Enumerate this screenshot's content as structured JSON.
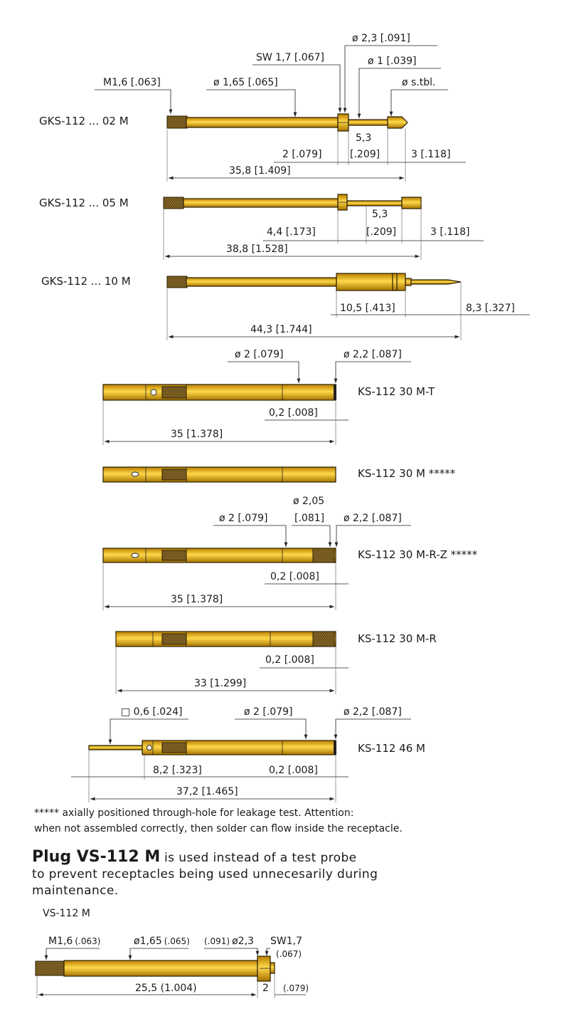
{
  "colors": {
    "gold": "#E8AE00",
    "gold_light": "#FFD84A",
    "gold_dark": "#A87400",
    "outline": "#2A1E00",
    "thread": "#7A5A20"
  },
  "gks02": {
    "label": "GKS-112 ... 02 M",
    "thread": "M1,6 [.063]",
    "dia": "ø 1,65 [.065]",
    "sw": "SW 1,7 [.067]",
    "d23": "ø 2,3 [.091]",
    "d1": "ø 1 [.039]",
    "tip": "ø s.tbl.",
    "l53": "5,3",
    "l53in": "[.209]",
    "l2": "2 [.079]",
    "l3": "3 [.118]",
    "total": "35,8 [1.409]"
  },
  "gks05": {
    "label": "GKS-112 ... 05 M",
    "l53": "5,3",
    "l53in": "[.209]",
    "l44": "4,4 [.173]",
    "l3": "3 [.118]",
    "total": "38,8 [1.528]"
  },
  "gks10": {
    "label": "GKS-112 ... 10 M",
    "l105": "10,5 [.413]",
    "l83": "8,3 [.327]",
    "total": "44,3 [1.744]"
  },
  "ks30mt": {
    "label": "KS-112 30 M-T",
    "d2": "ø 2 [.079]",
    "d22": "ø 2,2 [.087]",
    "l02": "0,2 [.008]",
    "total": "35 [1.378]"
  },
  "ks30m": {
    "label": "KS-112 30 M *****"
  },
  "ks30mrz": {
    "label": "KS-112 30 M-R-Z *****",
    "d205": "ø 2,05",
    "d205in": "[.081]",
    "d2": "ø 2 [.079]",
    "d22": "ø 2,2 [.087]",
    "l02": "0,2 [.008]",
    "total": "35 [1.378]"
  },
  "ks30mr": {
    "label": "KS-112 30 M-R",
    "l02": "0,2 [.008]",
    "total": "33 [1.299]"
  },
  "ks46m": {
    "label": "KS-112 46 M",
    "sq": "□ 0,6 [.024]",
    "d2": "ø 2 [.079]",
    "d22": "ø 2,2 [.087]",
    "l82": "8,2 [.323]",
    "l02": "0,2 [.008]",
    "total": "37,2 [1.465]"
  },
  "footnote": {
    "line1": "***** axially positioned through-hole for leakage test. Attention:",
    "line2": "when not assembled correctly, then solder can flow inside the receptacle."
  },
  "plug": {
    "title": "Plug VS-112 M",
    "line1": " is used instead of a test probe",
    "line2": "to prevent receptacles being used unnecesarily during",
    "line3": "maintenance."
  },
  "vs": {
    "label": "VS-112 M",
    "m16": "M1,6",
    "m16in": "(.063)",
    "d165": "ø1,65",
    "d165in": "(.065)",
    "d23in": "(.091)",
    "d23": "ø2,3",
    "sw": "SW1,7",
    "swin": "(.067)",
    "total": "25,5 (1.004)",
    "l2": "2",
    "l2in": "(.079)"
  }
}
